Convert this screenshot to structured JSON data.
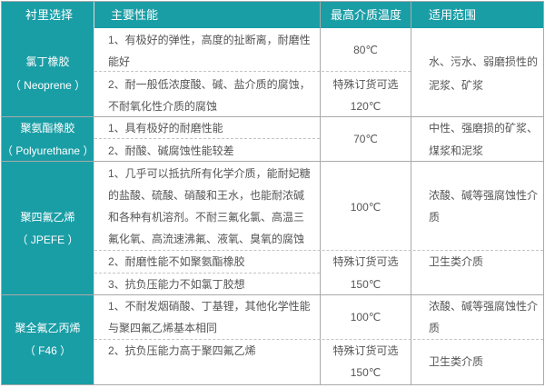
{
  "header": [
    "衬里选择",
    "主要性能",
    "最高介质温度",
    "适用范围"
  ],
  "rows": [
    {
      "name": "氯丁橡胶",
      "code": "（ Neoprene ）",
      "props": [
        "1、有极好的弹性，高度的扯断离，耐磨性",
        "能好",
        "2、耐一般低浓度酸、碱、盐介质的腐蚀，",
        "不耐氧化性介质的腐蚀"
      ],
      "temp": [
        "80℃",
        "特殊订货可选",
        "120℃"
      ],
      "use": [
        "水、污水、弱磨损性的",
        "泥浆、矿浆"
      ]
    },
    {
      "name": "聚氨酯橡胶",
      "code": "（ Polyurethane ）",
      "props": [
        "1、具有极好的耐磨性能",
        "2、耐酸、碱腐蚀性能较差"
      ],
      "temp": [
        "70℃"
      ],
      "use": [
        "中性、强磨损的矿浆、",
        "煤浆和泥浆"
      ]
    },
    {
      "name": "聚四氟乙烯",
      "code": "（ JPEFE ）",
      "props": [
        "1、几乎可以抵抗所有化学介质，能耐妃糖",
        "的盐酸、硫酸、硝酸和王水，也能耐浓碱",
        "和各种有机溶剂。不耐三氟化氯、高温三",
        "氟化氧、高流速沸氟、液氧、臭氧的腐蚀",
        "2、耐磨性能不如聚氨酯橡胶",
        "3、抗负压能力不如氯丁胶想"
      ],
      "temp": [
        "100℃",
        "特殊订货可选",
        "150℃"
      ],
      "use": [
        "浓酸、碱等强腐蚀性介",
        "质",
        "卫生类介质"
      ]
    },
    {
      "name": "聚全氟乙丙烯",
      "code": "（ F46 ）",
      "props": [
        "1、不耐发烟硝酸、丁基锂，其他化学性能",
        "与聚四氟乙烯基本相同",
        "2、抗负压能力高于聚四氟乙烯"
      ],
      "temp": [
        "100℃",
        "特殊订货可选",
        "150℃"
      ],
      "use": [
        "浓酸、碱等强腐蚀性介",
        "质",
        "卫生类介质"
      ]
    }
  ],
  "colors": {
    "header": "#1a9ea6",
    "text": "#555555",
    "border": "#a9a9a9"
  }
}
